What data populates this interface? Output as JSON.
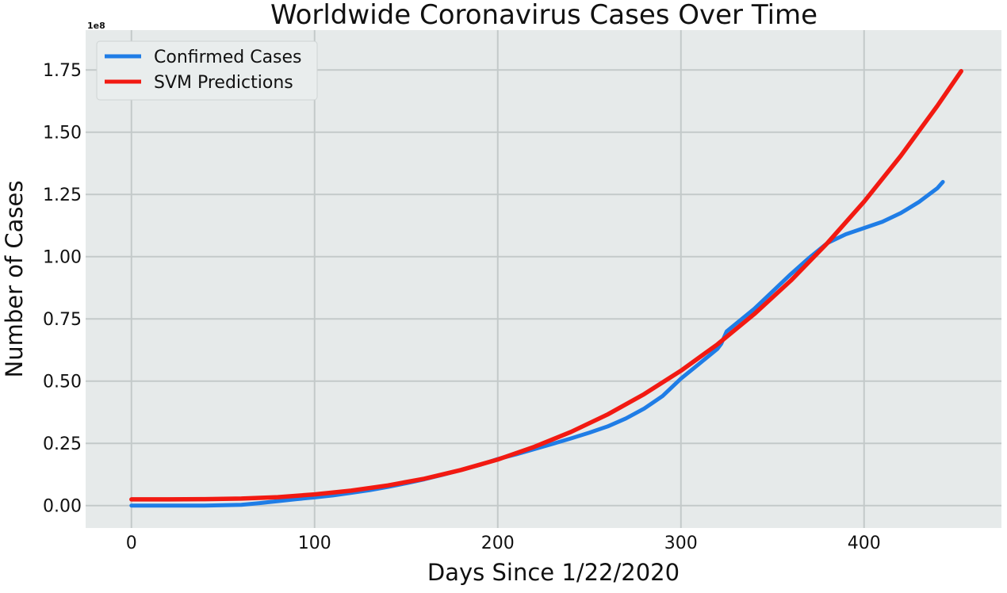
{
  "chart_data": {
    "type": "line",
    "title": "Worldwide Coronavirus Cases Over Time",
    "xlabel": "Days Since 1/22/2020",
    "ylabel": "Number of Cases",
    "y_offset_label": "1e8",
    "xlim": [
      -25,
      475
    ],
    "ylim": [
      -0.09,
      1.91
    ],
    "y_unit_multiplier": 100000000,
    "x_ticks": [
      0,
      100,
      200,
      300,
      400
    ],
    "x_tick_labels": [
      "0",
      "100",
      "200",
      "300",
      "400"
    ],
    "y_ticks": [
      0,
      0.25,
      0.5,
      0.75,
      1.0,
      1.25,
      1.5,
      1.75
    ],
    "y_tick_labels": [
      "0.00",
      "0.25",
      "0.50",
      "0.75",
      "1.00",
      "1.25",
      "1.50",
      "1.75"
    ],
    "grid": true,
    "legend_position": "top-left",
    "colors": {
      "plot_background": "#e6eaea",
      "grid": "#c3c9c9",
      "confirmed": "#1f7de6",
      "svm": "#f21a12"
    },
    "series": [
      {
        "name": "Confirmed Cases",
        "color": "#1f7de6",
        "x": [
          0,
          20,
          40,
          60,
          70,
          80,
          90,
          100,
          110,
          120,
          130,
          140,
          150,
          160,
          170,
          180,
          190,
          200,
          210,
          220,
          230,
          240,
          250,
          260,
          270,
          280,
          290,
          300,
          310,
          320,
          322,
          325,
          330,
          340,
          350,
          360,
          370,
          380,
          390,
          400,
          410,
          420,
          430,
          440,
          443
        ],
        "values": [
          0.0,
          0.0,
          0.0,
          0.003,
          0.01,
          0.018,
          0.026,
          0.033,
          0.041,
          0.051,
          0.062,
          0.075,
          0.09,
          0.106,
          0.124,
          0.143,
          0.163,
          0.187,
          0.206,
          0.227,
          0.248,
          0.27,
          0.293,
          0.318,
          0.35,
          0.39,
          0.44,
          0.51,
          0.57,
          0.63,
          0.65,
          0.7,
          0.73,
          0.79,
          0.86,
          0.93,
          0.995,
          1.055,
          1.09,
          1.115,
          1.14,
          1.175,
          1.22,
          1.275,
          1.3
        ]
      },
      {
        "name": "SVM Predictions",
        "color": "#f21a12",
        "x": [
          0,
          20,
          40,
          60,
          80,
          100,
          120,
          140,
          160,
          180,
          200,
          220,
          240,
          260,
          280,
          300,
          320,
          340,
          360,
          380,
          400,
          420,
          440,
          453
        ],
        "values": [
          0.025,
          0.025,
          0.026,
          0.028,
          0.034,
          0.045,
          0.06,
          0.081,
          0.108,
          0.143,
          0.185,
          0.236,
          0.296,
          0.366,
          0.448,
          0.542,
          0.648,
          0.769,
          0.904,
          1.055,
          1.221,
          1.405,
          1.606,
          1.745
        ]
      }
    ]
  }
}
